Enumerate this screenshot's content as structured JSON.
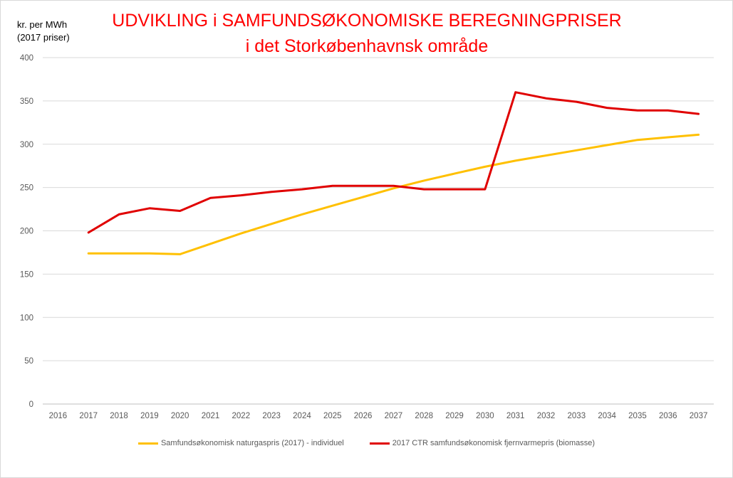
{
  "chart_data": {
    "type": "line",
    "title": "UDVIKLING i SAMFUNDSØKONOMISKE BEREGNINGPRISER",
    "subtitle": "i det Storkøbenhavnsk område",
    "ylabel": "kr. per MWh",
    "ylabel_unit": "(2017 priser)",
    "xlabel": "",
    "categories": [
      "2016",
      "2017",
      "2018",
      "2019",
      "2020",
      "2021",
      "2022",
      "2023",
      "2024",
      "2025",
      "2026",
      "2027",
      "2028",
      "2029",
      "2030",
      "2031",
      "2032",
      "2033",
      "2034",
      "2035",
      "2036",
      "2037"
    ],
    "ylim": [
      0,
      400
    ],
    "yticks": [
      0,
      50,
      100,
      150,
      200,
      250,
      300,
      350,
      400
    ],
    "grid": true,
    "legend_position": "bottom",
    "series": [
      {
        "name": "Samfundsøkonomisk naturgaspris (2017) - individuel",
        "color": "#ffc000",
        "values": [
          null,
          174,
          174,
          174,
          173,
          185,
          197,
          208,
          219,
          229,
          239,
          249,
          258,
          266,
          274,
          281,
          287,
          293,
          299,
          305,
          308,
          311
        ]
      },
      {
        "name": "2017 CTR samfundsøkonomisk fjernvarmepris (biomasse)",
        "color": "#e00000",
        "values": [
          null,
          198,
          219,
          226,
          223,
          238,
          241,
          245,
          248,
          252,
          252,
          252,
          248,
          248,
          248,
          360,
          353,
          349,
          342,
          339,
          339,
          335
        ]
      }
    ]
  }
}
